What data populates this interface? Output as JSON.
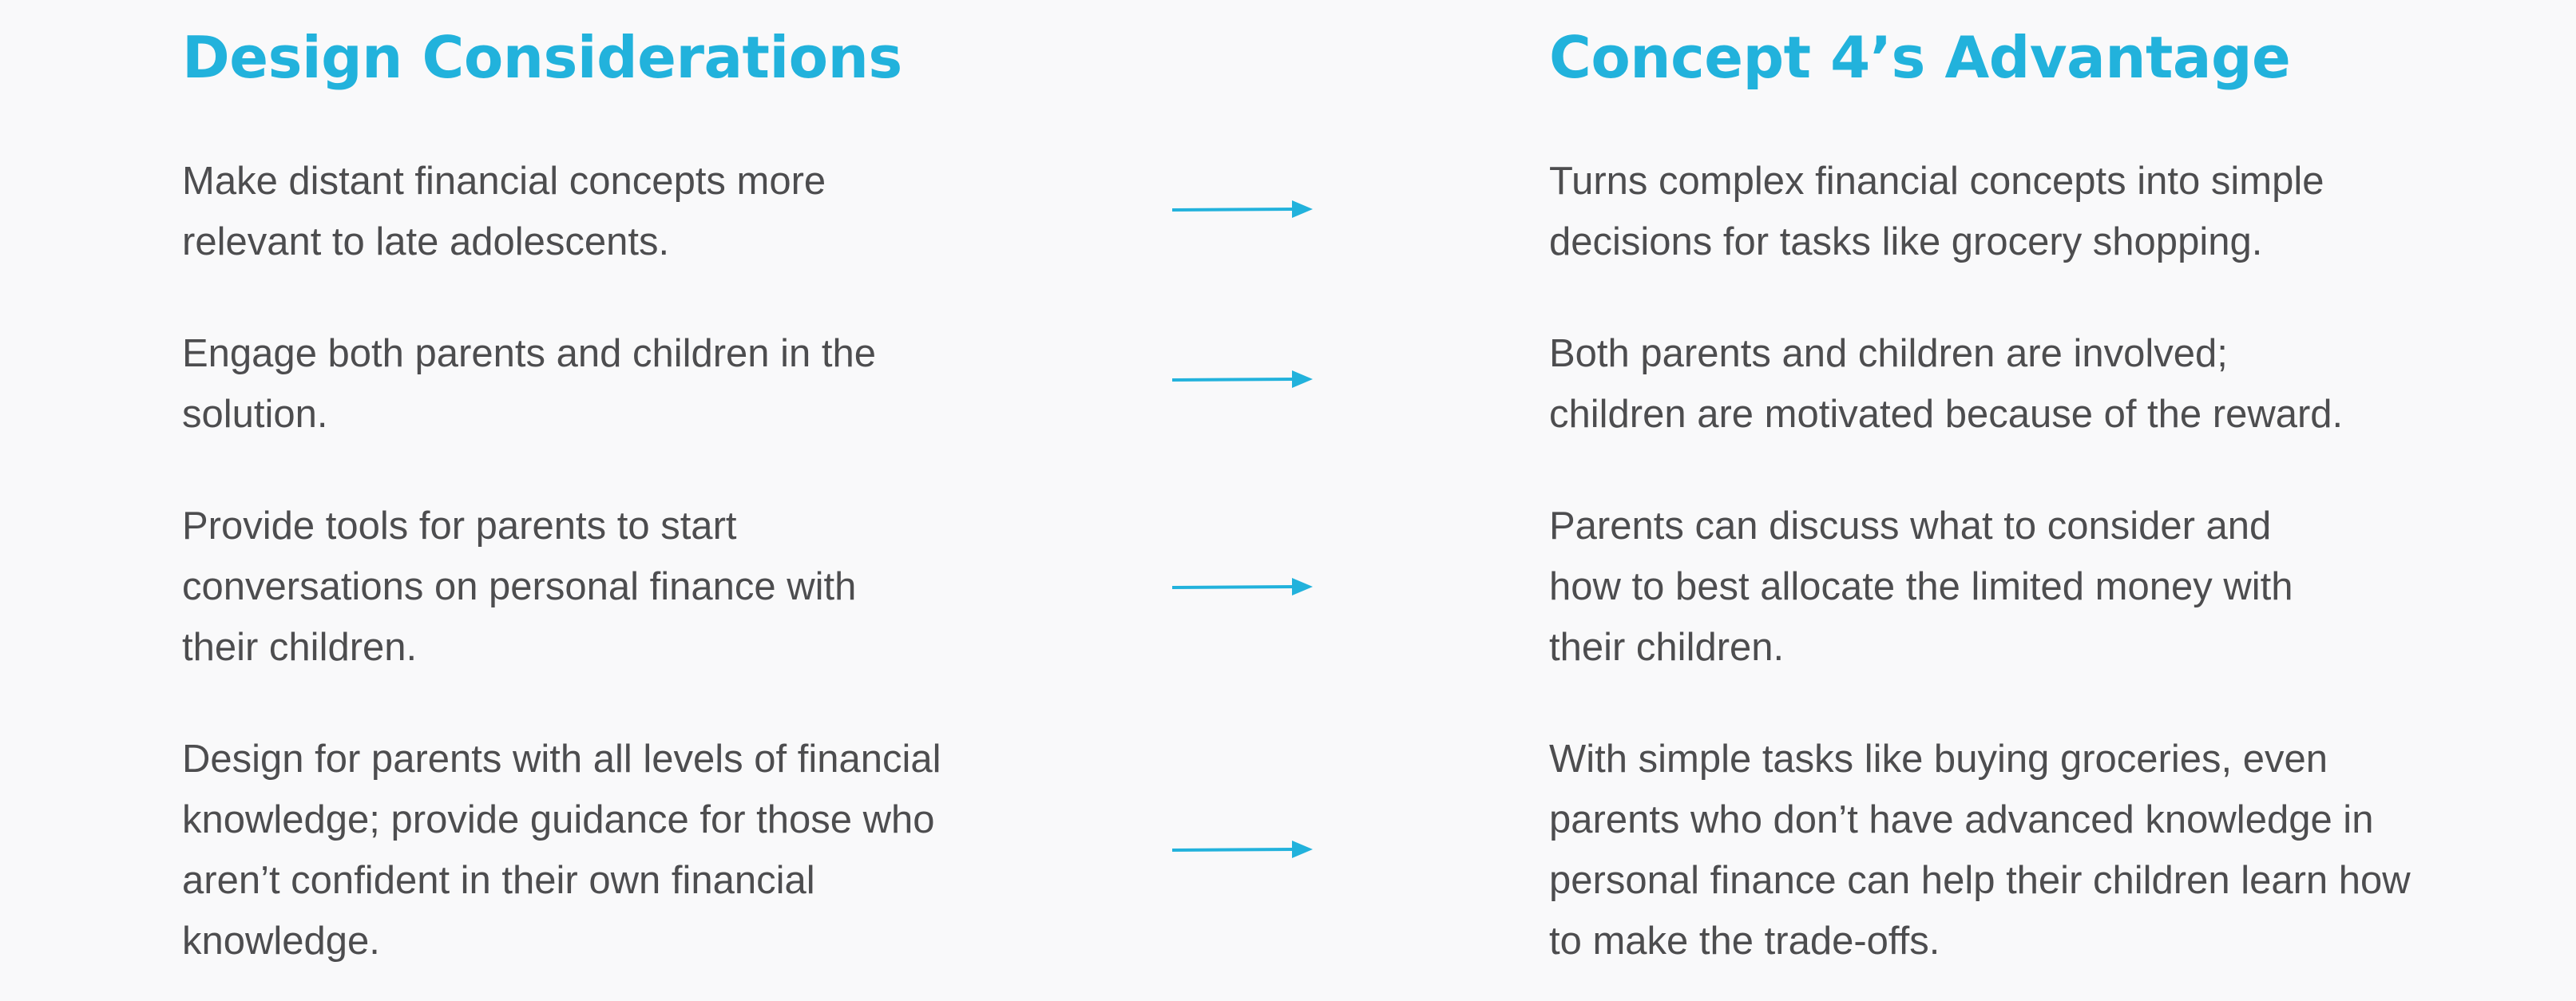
{
  "left_heading": "Design Considerations",
  "right_heading": "Concept 4’s Advantage",
  "rows": [
    {
      "consideration": "Make distant financial concepts more\nrelevant to late adolescents.",
      "advantage": "Turns complex financial concepts into simple\ndecisions for tasks like grocery shopping."
    },
    {
      "consideration": "Engage both parents and children in the\nsolution.",
      "advantage": "Both parents and children are involved;\nchildren are motivated because of the reward."
    },
    {
      "consideration": "Provide tools for parents to start\nconversations on personal finance with\ntheir children.",
      "advantage": "Parents can discuss what to consider and\nhow to best allocate the limited money with\ntheir children."
    },
    {
      "consideration": "Design for parents with all levels of financial\nknowledge; provide guidance for those who\naren’t confident in their own financial\nknowledge.",
      "advantage": "With simple tasks like buying groceries, even\nparents who don’t have advanced knowledge in\npersonal finance can help their children learn how\nto make the trade-offs."
    }
  ],
  "colors": {
    "accent": "#22b2dc",
    "text": "#4d4d4f",
    "background": "#f9f9fa"
  },
  "icons": {
    "connector": "arrow-right-icon"
  }
}
